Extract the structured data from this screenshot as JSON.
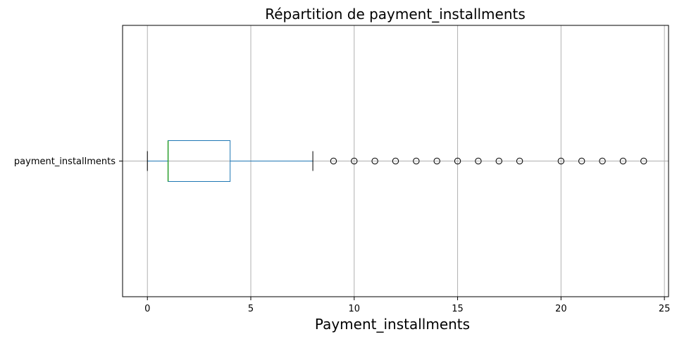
{
  "chart_data": {
    "type": "boxplot",
    "orientation": "horizontal",
    "title": "Répartition de payment_installments",
    "xlabel": "Payment_installments",
    "ylabel": "",
    "xlim": [
      -1.2,
      25.2
    ],
    "xticks": [
      0,
      5,
      10,
      15,
      20,
      25
    ],
    "grid": true,
    "series": [
      {
        "name": "payment_installments",
        "whisker_low": 0,
        "q1": 1,
        "median": 1,
        "q3": 4,
        "whisker_high": 8,
        "outliers": [
          9,
          10,
          11,
          12,
          13,
          14,
          15,
          16,
          17,
          18,
          20,
          21,
          22,
          23,
          24
        ]
      }
    ],
    "colors": {
      "box": "#1f77b4",
      "median": "#2ca02c",
      "whisker_cap": "#000000",
      "outlier": "#000000",
      "grid": "#b0b0b0"
    }
  }
}
